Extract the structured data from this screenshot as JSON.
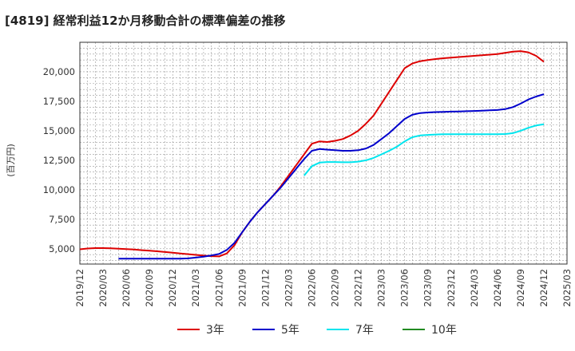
{
  "chart_data": {
    "type": "line",
    "title": "[4819]  経常利益12か月移動合計の標準偏差の推移",
    "ylabel": "(百万円)",
    "xlabel": "",
    "ylim": [
      3700,
      22500
    ],
    "xlim": [
      "2019-12",
      "2025-03"
    ],
    "grid": true,
    "legend_position": "bottom",
    "yticks": [
      {
        "v": 5000,
        "label": "5,000"
      },
      {
        "v": 7500,
        "label": "7,500"
      },
      {
        "v": 10000,
        "label": "10,000"
      },
      {
        "v": 12500,
        "label": "12,500"
      },
      {
        "v": 15000,
        "label": "15,000"
      },
      {
        "v": 17500,
        "label": "17,500"
      },
      {
        "v": 20000,
        "label": "20,000"
      }
    ],
    "xticks": [
      "2019/12",
      "2020/03",
      "2020/06",
      "2020/09",
      "2020/12",
      "2021/03",
      "2021/06",
      "2021/09",
      "2021/12",
      "2022/03",
      "2022/06",
      "2022/09",
      "2022/12",
      "2023/03",
      "2023/06",
      "2023/09",
      "2023/12",
      "2024/03",
      "2024/06",
      "2024/09",
      "2024/12",
      "2025/03"
    ],
    "series": [
      {
        "name": "3年",
        "color": "#dd0000",
        "points": [
          [
            "2019-12",
            4950
          ],
          [
            "2020-01",
            5020
          ],
          [
            "2020-02",
            5050
          ],
          [
            "2020-03",
            5050
          ],
          [
            "2020-04",
            5030
          ],
          [
            "2020-05",
            5000
          ],
          [
            "2020-06",
            4970
          ],
          [
            "2020-07",
            4930
          ],
          [
            "2020-08",
            4880
          ],
          [
            "2020-09",
            4830
          ],
          [
            "2020-10",
            4780
          ],
          [
            "2020-11",
            4720
          ],
          [
            "2020-12",
            4660
          ],
          [
            "2021-01",
            4600
          ],
          [
            "2021-02",
            4540
          ],
          [
            "2021-03",
            4480
          ],
          [
            "2021-04",
            4420
          ],
          [
            "2021-05",
            4370
          ],
          [
            "2021-06",
            4350
          ],
          [
            "2021-07",
            4600
          ],
          [
            "2021-08",
            5300
          ],
          [
            "2021-09",
            6400
          ],
          [
            "2021-10",
            7300
          ],
          [
            "2021-11",
            8100
          ],
          [
            "2021-12",
            8800
          ],
          [
            "2022-01",
            9500
          ],
          [
            "2022-02",
            10300
          ],
          [
            "2022-03",
            11200
          ],
          [
            "2022-04",
            12100
          ],
          [
            "2022-05",
            13000
          ],
          [
            "2022-06",
            13900
          ],
          [
            "2022-07",
            14100
          ],
          [
            "2022-08",
            14050
          ],
          [
            "2022-09",
            14150
          ],
          [
            "2022-10",
            14300
          ],
          [
            "2022-11",
            14600
          ],
          [
            "2022-12",
            15000
          ],
          [
            "2023-01",
            15600
          ],
          [
            "2023-02",
            16300
          ],
          [
            "2023-03",
            17300
          ],
          [
            "2023-04",
            18300
          ],
          [
            "2023-05",
            19300
          ],
          [
            "2023-06",
            20300
          ],
          [
            "2023-07",
            20700
          ],
          [
            "2023-08",
            20900
          ],
          [
            "2023-09",
            21000
          ],
          [
            "2023-10",
            21080
          ],
          [
            "2023-11",
            21150
          ],
          [
            "2023-12",
            21200
          ],
          [
            "2024-01",
            21250
          ],
          [
            "2024-02",
            21300
          ],
          [
            "2024-03",
            21350
          ],
          [
            "2024-04",
            21400
          ],
          [
            "2024-05",
            21450
          ],
          [
            "2024-06",
            21500
          ],
          [
            "2024-07",
            21600
          ],
          [
            "2024-08",
            21700
          ],
          [
            "2024-09",
            21750
          ],
          [
            "2024-10",
            21650
          ],
          [
            "2024-11",
            21350
          ],
          [
            "2024-12",
            20850
          ]
        ]
      },
      {
        "name": "5年",
        "color": "#0000cc",
        "points": [
          [
            "2020-05",
            4150
          ],
          [
            "2020-06",
            4150
          ],
          [
            "2020-07",
            4150
          ],
          [
            "2020-08",
            4150
          ],
          [
            "2020-09",
            4150
          ],
          [
            "2020-10",
            4150
          ],
          [
            "2020-11",
            4150
          ],
          [
            "2020-12",
            4150
          ],
          [
            "2021-01",
            4150
          ],
          [
            "2021-02",
            4180
          ],
          [
            "2021-03",
            4250
          ],
          [
            "2021-04",
            4330
          ],
          [
            "2021-05",
            4430
          ],
          [
            "2021-06",
            4550
          ],
          [
            "2021-07",
            4900
          ],
          [
            "2021-08",
            5500
          ],
          [
            "2021-09",
            6400
          ],
          [
            "2021-10",
            7300
          ],
          [
            "2021-11",
            8100
          ],
          [
            "2021-12",
            8800
          ],
          [
            "2022-01",
            9500
          ],
          [
            "2022-02",
            10200
          ],
          [
            "2022-03",
            11000
          ],
          [
            "2022-04",
            11800
          ],
          [
            "2022-05",
            12600
          ],
          [
            "2022-06",
            13300
          ],
          [
            "2022-07",
            13450
          ],
          [
            "2022-08",
            13400
          ],
          [
            "2022-09",
            13350
          ],
          [
            "2022-10",
            13300
          ],
          [
            "2022-11",
            13300
          ],
          [
            "2022-12",
            13350
          ],
          [
            "2023-01",
            13500
          ],
          [
            "2023-02",
            13800
          ],
          [
            "2023-03",
            14300
          ],
          [
            "2023-04",
            14800
          ],
          [
            "2023-05",
            15400
          ],
          [
            "2023-06",
            16000
          ],
          [
            "2023-07",
            16350
          ],
          [
            "2023-08",
            16500
          ],
          [
            "2023-09",
            16550
          ],
          [
            "2023-10",
            16580
          ],
          [
            "2023-11",
            16600
          ],
          [
            "2023-12",
            16620
          ],
          [
            "2024-01",
            16640
          ],
          [
            "2024-02",
            16660
          ],
          [
            "2024-03",
            16680
          ],
          [
            "2024-04",
            16700
          ],
          [
            "2024-05",
            16730
          ],
          [
            "2024-06",
            16760
          ],
          [
            "2024-07",
            16830
          ],
          [
            "2024-08",
            17000
          ],
          [
            "2024-09",
            17300
          ],
          [
            "2024-10",
            17650
          ],
          [
            "2024-11",
            17900
          ],
          [
            "2024-12",
            18100
          ]
        ]
      },
      {
        "name": "7年",
        "color": "#00e5ee",
        "points": [
          [
            "2022-05",
            11200
          ],
          [
            "2022-06",
            12000
          ],
          [
            "2022-07",
            12300
          ],
          [
            "2022-08",
            12350
          ],
          [
            "2022-09",
            12350
          ],
          [
            "2022-10",
            12330
          ],
          [
            "2022-11",
            12330
          ],
          [
            "2022-12",
            12380
          ],
          [
            "2023-01",
            12500
          ],
          [
            "2023-02",
            12700
          ],
          [
            "2023-03",
            13000
          ],
          [
            "2023-04",
            13300
          ],
          [
            "2023-05",
            13650
          ],
          [
            "2023-06",
            14100
          ],
          [
            "2023-07",
            14450
          ],
          [
            "2023-08",
            14600
          ],
          [
            "2023-09",
            14650
          ],
          [
            "2023-10",
            14680
          ],
          [
            "2023-11",
            14700
          ],
          [
            "2023-12",
            14700
          ],
          [
            "2024-01",
            14700
          ],
          [
            "2024-02",
            14700
          ],
          [
            "2024-03",
            14700
          ],
          [
            "2024-04",
            14700
          ],
          [
            "2024-05",
            14700
          ],
          [
            "2024-06",
            14700
          ],
          [
            "2024-07",
            14720
          ],
          [
            "2024-08",
            14800
          ],
          [
            "2024-09",
            15000
          ],
          [
            "2024-10",
            15250
          ],
          [
            "2024-11",
            15450
          ],
          [
            "2024-12",
            15550
          ]
        ]
      },
      {
        "name": "10年",
        "color": "#228b22",
        "points": []
      }
    ]
  }
}
